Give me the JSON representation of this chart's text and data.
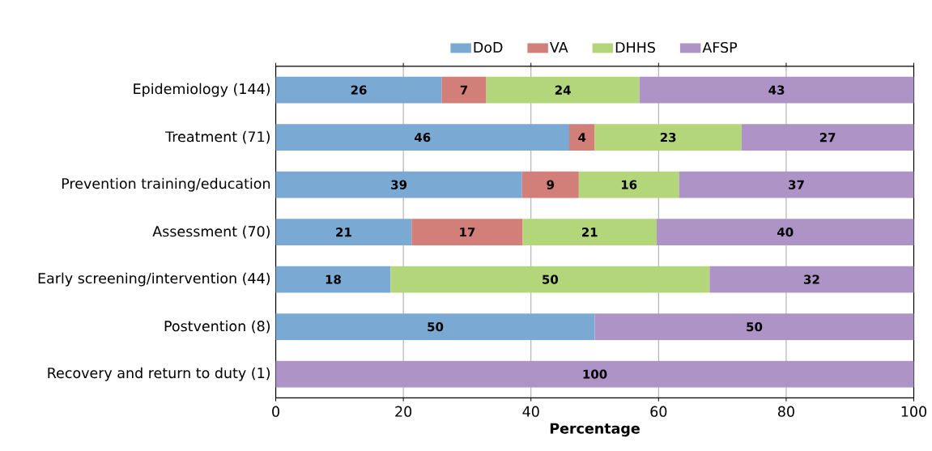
{
  "chart_data": {
    "type": "bar",
    "orientation": "horizontal",
    "stacked": true,
    "xlabel": "Percentage",
    "categories": [
      "Epidemiology (144)",
      "Treatment (71)",
      "Prevention training/education",
      "Assessment (70)",
      "Early screening/intervention (44)",
      "Postvention (8)",
      "Recovery and return to duty (1)"
    ],
    "series": [
      {
        "name": "DoD",
        "color": "#7aaad3",
        "values": [
          26,
          46,
          38.6,
          21.3,
          18,
          50,
          null
        ],
        "value_labels": [
          "26",
          "46",
          "39",
          "21",
          "18",
          "50",
          null
        ]
      },
      {
        "name": "VA",
        "color": "#d17f78",
        "values": [
          7,
          4,
          8.9,
          17.4,
          null,
          null,
          null
        ],
        "value_labels": [
          "7",
          "4",
          "9",
          "17",
          null,
          null,
          null
        ]
      },
      {
        "name": "DHHS",
        "color": "#b3d67a",
        "values": [
          24,
          23,
          15.7,
          21.0,
          50,
          null,
          null
        ],
        "value_labels": [
          "24",
          "23",
          "16",
          "21",
          "50",
          null,
          null
        ]
      },
      {
        "name": "AFSP",
        "color": "#ad93c6",
        "values": [
          43,
          27,
          36.8,
          40.3,
          32,
          50,
          100
        ],
        "value_labels": [
          "43",
          "27",
          "37",
          "40",
          "32",
          "50",
          "100"
        ]
      }
    ],
    "xlim": [
      0,
      100
    ],
    "xticks": [
      0,
      20,
      40,
      60,
      80,
      100
    ],
    "grid": "x",
    "legend": "top"
  }
}
